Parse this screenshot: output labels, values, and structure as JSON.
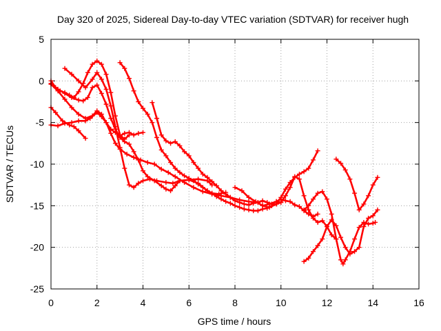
{
  "chart_data": {
    "type": "scatter",
    "title": "Day 320 of 2025, Sidereal Day-to-day VTEC variation (SDTVAR) for receiver hugh",
    "xlabel": "GPS time / hours",
    "ylabel": "SDTVAR / TECUs",
    "xlim": [
      0,
      16
    ],
    "ylim": [
      -25,
      5
    ],
    "xticks": [
      0,
      2,
      4,
      6,
      8,
      10,
      12,
      14,
      16
    ],
    "yticks": [
      5,
      0,
      -5,
      -10,
      -15,
      -20,
      -25
    ],
    "xtick_labels": [
      "0",
      "2",
      "4",
      "6",
      "8",
      "10",
      "12",
      "14",
      "16"
    ],
    "ytick_labels": [
      "5",
      "0",
      "-5",
      "-10",
      "-15",
      "-20",
      "-25"
    ],
    "grid": true,
    "marker": "+",
    "color": "#ff0000",
    "series": [
      {
        "x": [
          0.0,
          0.2,
          0.5,
          0.8,
          1.0,
          1.2,
          1.5
        ],
        "y": [
          -3.2,
          -3.8,
          -4.8,
          -5.3,
          -5.5,
          -6.0,
          -6.9
        ]
      },
      {
        "x": [
          0.0,
          0.3,
          0.6,
          0.9,
          1.2,
          1.5,
          1.7,
          2.0,
          2.2,
          2.4,
          2.6,
          2.8,
          3.0,
          3.2,
          3.4,
          3.6,
          3.8,
          4.0
        ],
        "y": [
          -5.3,
          -5.4,
          -5.1,
          -5.0,
          -4.8,
          -4.8,
          -4.5,
          -3.8,
          -4.3,
          -5.0,
          -5.8,
          -6.2,
          -6.6,
          -6.3,
          -6.2,
          -6.5,
          -6.3,
          -6.2
        ]
      },
      {
        "x": [
          0.0,
          0.2,
          0.4,
          0.6,
          0.8,
          1.0,
          1.2,
          1.4,
          1.6,
          1.8,
          2.0,
          2.2,
          2.4,
          2.6,
          2.8,
          3.0,
          3.2,
          3.4
        ],
        "y": [
          0.0,
          -0.8,
          -1.2,
          -1.4,
          -1.7,
          -2.0,
          -1.3,
          -0.3,
          1.0,
          2.0,
          2.4,
          2.0,
          0.8,
          -1.4,
          -4.2,
          -6.5,
          -7.0,
          -6.5
        ]
      },
      {
        "x": [
          0.6,
          0.9,
          1.2,
          1.5,
          1.8,
          2.0,
          2.2,
          2.4,
          2.6,
          2.8,
          3.0,
          3.2,
          3.4,
          3.6,
          3.8,
          4.0,
          4.3,
          4.6,
          5.0,
          5.3,
          5.6,
          6.0,
          6.4,
          6.8,
          7.0
        ],
        "y": [
          1.5,
          0.8,
          0.0,
          -0.8,
          0.2,
          1.0,
          0.2,
          -1.0,
          -3.0,
          -5.5,
          -8.0,
          -10.5,
          -12.5,
          -12.8,
          -12.3,
          -12.0,
          -11.8,
          -12.0,
          -12.2,
          -12.3,
          -12.0,
          -11.9,
          -11.8,
          -12.0,
          -12.5
        ]
      },
      {
        "x": [
          0.0,
          0.3,
          0.6,
          0.9,
          1.2,
          1.4,
          1.6,
          1.8,
          2.0,
          2.2,
          2.4,
          2.6,
          2.8,
          3.0,
          3.2,
          3.4,
          3.6,
          3.8,
          4.0,
          4.2,
          4.5,
          4.8,
          5.0,
          5.2,
          5.4,
          5.6,
          6.0,
          6.4,
          6.8,
          7.0,
          7.3,
          7.6
        ],
        "y": [
          -0.3,
          -1.0,
          -1.5,
          -2.0,
          -2.3,
          -2.4,
          -2.0,
          -0.8,
          -0.5,
          -1.5,
          -2.8,
          -4.5,
          -5.8,
          -6.8,
          -7.3,
          -7.6,
          -8.5,
          -9.5,
          -10.8,
          -11.5,
          -12.0,
          -12.6,
          -13.0,
          -13.2,
          -12.6,
          -12.0,
          -11.9,
          -12.3,
          -13.2,
          -13.5,
          -13.6,
          -13.4
        ]
      },
      {
        "x": [
          0.0,
          0.3,
          0.6,
          0.9,
          1.2,
          1.5,
          1.8,
          2.0,
          2.2,
          2.4,
          2.6,
          2.8,
          3.0,
          3.3,
          3.6,
          3.9,
          4.2,
          4.5,
          4.8,
          5.1,
          5.4,
          5.8,
          6.2,
          6.6,
          7.0,
          7.4,
          7.8,
          8.2,
          8.6,
          9.0
        ],
        "y": [
          -0.4,
          -1.2,
          -2.2,
          -3.2,
          -4.0,
          -4.5,
          -4.2,
          -3.6,
          -4.0,
          -5.0,
          -6.3,
          -7.5,
          -8.2,
          -8.8,
          -9.2,
          -9.5,
          -9.8,
          -10.0,
          -10.6,
          -11.0,
          -11.5,
          -12.2,
          -12.8,
          -13.3,
          -13.6,
          -13.8,
          -14.0,
          -14.3,
          -14.5,
          -14.6
        ]
      },
      {
        "x": [
          3.0,
          3.2,
          3.4,
          3.6,
          3.8,
          4.0,
          4.2,
          4.4,
          4.6,
          4.8,
          5.0,
          5.2,
          5.4,
          5.6,
          5.8,
          6.0,
          6.2,
          6.4,
          6.6,
          6.8,
          7.0,
          7.2,
          7.4,
          7.6,
          7.8,
          8.0,
          8.2,
          8.4,
          8.6,
          8.8,
          9.0,
          9.2,
          9.4,
          9.6,
          9.8,
          10.0
        ],
        "y": [
          2.2,
          1.5,
          0.3,
          -1.2,
          -2.5,
          -3.3,
          -4.0,
          -5.0,
          -6.8,
          -8.3,
          -9.0,
          -9.8,
          -10.5,
          -11.0,
          -11.4,
          -11.7,
          -12.0,
          -12.4,
          -12.8,
          -13.2,
          -13.5,
          -13.9,
          -14.2,
          -14.5,
          -14.7,
          -15.0,
          -15.2,
          -15.4,
          -15.5,
          -15.6,
          -15.6,
          -15.4,
          -15.3,
          -15.0,
          -14.8,
          -14.6
        ]
      },
      {
        "x": [
          4.4,
          4.6,
          4.8,
          5.0,
          5.2,
          5.4,
          5.6,
          5.8,
          6.0,
          6.2,
          6.4,
          6.6,
          6.8,
          7.0,
          7.2,
          7.4,
          7.6,
          7.8,
          8.0,
          8.2,
          8.4,
          8.6,
          8.8,
          9.0,
          9.2,
          9.4,
          9.6,
          9.8,
          10.0,
          10.2,
          10.4,
          10.6,
          10.8,
          11.0,
          11.2,
          11.4,
          11.6
        ],
        "y": [
          -2.6,
          -4.5,
          -6.5,
          -7.2,
          -7.5,
          -7.3,
          -7.8,
          -8.5,
          -9.0,
          -9.8,
          -10.5,
          -11.2,
          -11.6,
          -12.1,
          -12.6,
          -13.2,
          -13.6,
          -14.0,
          -14.4,
          -14.6,
          -14.8,
          -14.9,
          -14.7,
          -14.6,
          -14.4,
          -14.6,
          -14.8,
          -14.5,
          -14.2,
          -14.4,
          -14.5,
          -14.9,
          -15.1,
          -15.6,
          -16.0,
          -16.3,
          -16.0
        ]
      },
      {
        "x": [
          8.0,
          8.3,
          8.6,
          8.9,
          9.2,
          9.5,
          9.8,
          10.0,
          10.2,
          10.4,
          10.6,
          10.8,
          11.0,
          11.2,
          11.4,
          11.6
        ],
        "y": [
          -12.8,
          -13.2,
          -14.0,
          -14.5,
          -15.0,
          -15.2,
          -14.8,
          -14.0,
          -13.0,
          -12.2,
          -11.6,
          -11.2,
          -10.9,
          -10.5,
          -9.5,
          -8.4
        ]
      },
      {
        "x": [
          9.2,
          9.5,
          9.8,
          10.0,
          10.2,
          10.4,
          10.6,
          10.8,
          11.0,
          11.2,
          11.4,
          11.6,
          11.8,
          12.0,
          12.2,
          12.4
        ],
        "y": [
          -15.0,
          -14.8,
          -14.5,
          -14.6,
          -13.8,
          -12.8,
          -11.5,
          -11.8,
          -13.8,
          -15.5,
          -16.5,
          -17.0,
          -16.8,
          -17.5,
          -18.5,
          -19.0
        ]
      },
      {
        "x": [
          11.0,
          11.2,
          11.4,
          11.6,
          11.8,
          12.0,
          12.2,
          12.4,
          12.6,
          12.8,
          13.0,
          13.2,
          13.4,
          13.6,
          13.8,
          14.0,
          14.2
        ],
        "y": [
          -21.7,
          -21.3,
          -20.5,
          -19.8,
          -19.0,
          -17.5,
          -16.7,
          -17.4,
          -18.8,
          -20.0,
          -20.8,
          -20.5,
          -20.0,
          -17.5,
          -16.5,
          -16.2,
          -15.5
        ]
      },
      {
        "x": [
          11.0,
          11.2,
          11.4,
          11.6,
          11.8,
          12.0,
          12.2,
          12.4,
          12.6,
          12.7,
          12.8,
          13.0,
          13.2,
          13.4,
          13.6,
          13.8,
          14.0,
          14.1
        ],
        "y": [
          -15.5,
          -15.0,
          -14.2,
          -13.5,
          -13.3,
          -14.2,
          -16.0,
          -19.0,
          -21.5,
          -22.0,
          -21.5,
          -20.5,
          -19.0,
          -17.6,
          -17.0,
          -17.2,
          -17.1,
          -17.0
        ]
      },
      {
        "x": [
          12.4,
          12.6,
          12.8,
          13.0,
          13.2,
          13.4,
          13.6,
          13.8,
          14.0,
          14.2
        ],
        "y": [
          -9.4,
          -9.9,
          -10.7,
          -11.8,
          -13.5,
          -15.5,
          -14.8,
          -13.8,
          -12.5,
          -11.6
        ]
      }
    ]
  }
}
